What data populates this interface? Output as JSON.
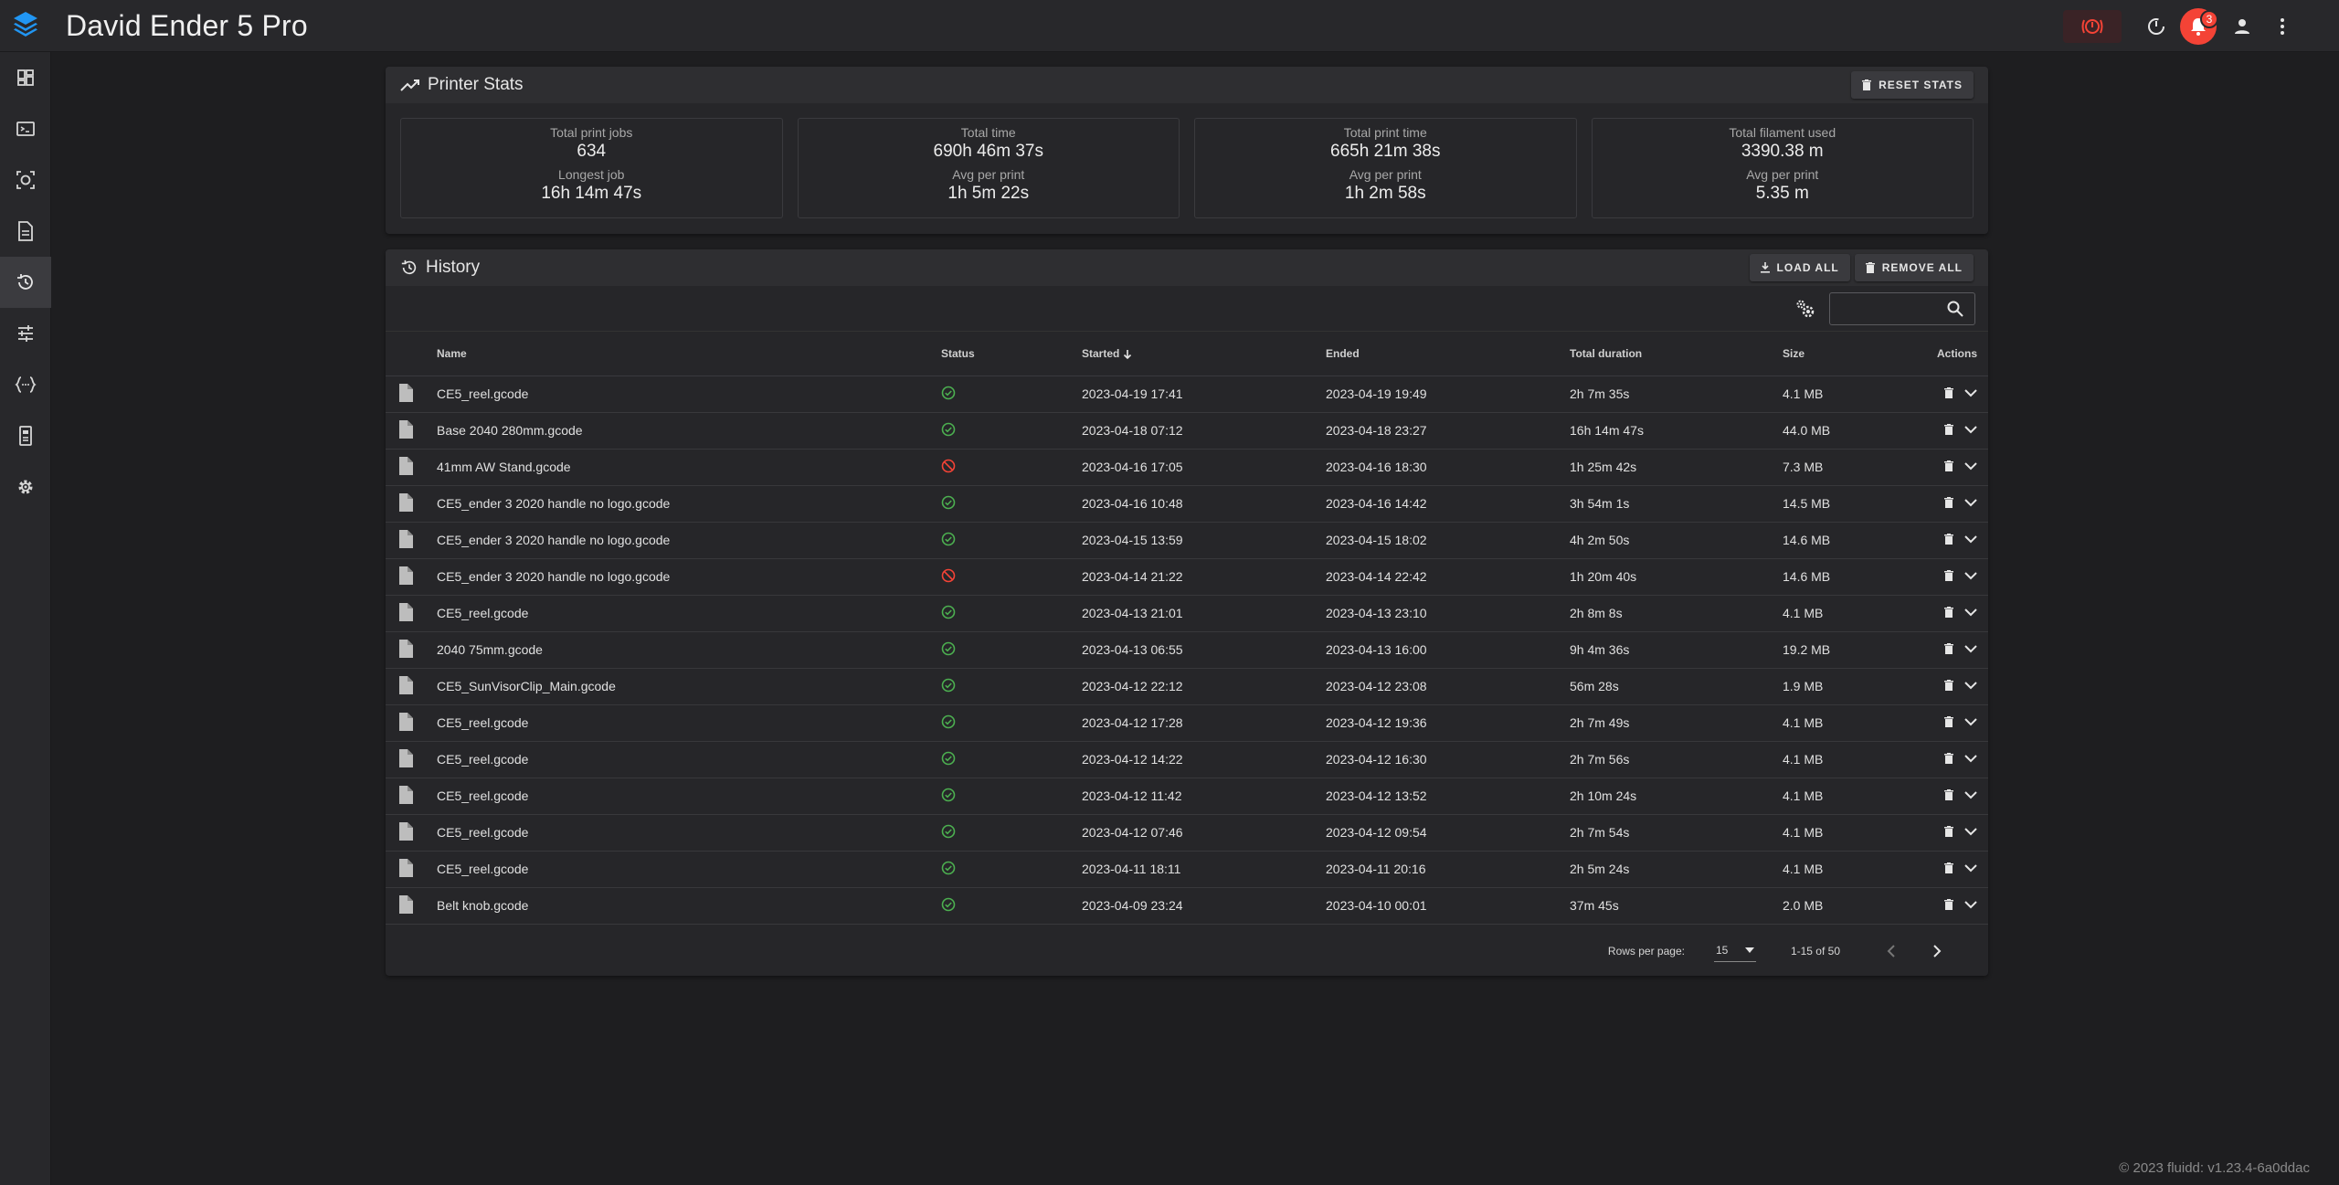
{
  "app": {
    "title": "David Ender 5 Pro",
    "notification_count": "3",
    "accent": "#2196f3",
    "danger": "#f44336"
  },
  "sidebar": {
    "items": [
      {
        "icon": "dashboard-icon"
      },
      {
        "icon": "console-icon"
      },
      {
        "icon": "camera-icon"
      },
      {
        "icon": "jobs-icon"
      },
      {
        "icon": "history-icon",
        "active": true
      },
      {
        "icon": "tune-icon"
      },
      {
        "icon": "macros-icon"
      },
      {
        "icon": "system-icon"
      },
      {
        "icon": "settings-icon"
      }
    ]
  },
  "stats": {
    "title": "Printer Stats",
    "reset_label": "RESET STATS",
    "boxes": [
      {
        "label1": "Total print jobs",
        "value1": "634",
        "label2": "Longest job",
        "value2": "16h 14m 47s"
      },
      {
        "label1": "Total time",
        "value1": "690h 46m 37s",
        "label2": "Avg per print",
        "value2": "1h 5m 22s"
      },
      {
        "label1": "Total print time",
        "value1": "665h 21m 38s",
        "label2": "Avg per print",
        "value2": "1h 2m 58s"
      },
      {
        "label1": "Total filament used",
        "value1": "3390.38 m",
        "label2": "Avg per print",
        "value2": "5.35 m"
      }
    ]
  },
  "history": {
    "title": "History",
    "load_all_label": "LOAD ALL",
    "remove_all_label": "REMOVE ALL",
    "search_value": "",
    "columns": {
      "name": "Name",
      "status": "Status",
      "started": "Started",
      "ended": "Ended",
      "duration": "Total duration",
      "size": "Size",
      "actions": "Actions"
    },
    "rows": [
      {
        "name": "CE5_reel.gcode",
        "status": "completed",
        "started": "2023-04-19 17:41",
        "ended": "2023-04-19 19:49",
        "duration": "2h 7m 35s",
        "size": "4.1 MB"
      },
      {
        "name": "Base 2040 280mm.gcode",
        "status": "completed",
        "started": "2023-04-18 07:12",
        "ended": "2023-04-18 23:27",
        "duration": "16h 14m 47s",
        "size": "44.0 MB"
      },
      {
        "name": "41mm AW Stand.gcode",
        "status": "cancelled",
        "started": "2023-04-16 17:05",
        "ended": "2023-04-16 18:30",
        "duration": "1h 25m 42s",
        "size": "7.3 MB"
      },
      {
        "name": "CE5_ender 3 2020 handle no logo.gcode",
        "status": "completed",
        "started": "2023-04-16 10:48",
        "ended": "2023-04-16 14:42",
        "duration": "3h 54m 1s",
        "size": "14.5 MB"
      },
      {
        "name": "CE5_ender 3 2020 handle no logo.gcode",
        "status": "completed",
        "started": "2023-04-15 13:59",
        "ended": "2023-04-15 18:02",
        "duration": "4h 2m 50s",
        "size": "14.6 MB"
      },
      {
        "name": "CE5_ender 3 2020 handle no logo.gcode",
        "status": "cancelled",
        "started": "2023-04-14 21:22",
        "ended": "2023-04-14 22:42",
        "duration": "1h 20m 40s",
        "size": "14.6 MB"
      },
      {
        "name": "CE5_reel.gcode",
        "status": "completed",
        "started": "2023-04-13 21:01",
        "ended": "2023-04-13 23:10",
        "duration": "2h 8m 8s",
        "size": "4.1 MB"
      },
      {
        "name": "2040 75mm.gcode",
        "status": "completed",
        "started": "2023-04-13 06:55",
        "ended": "2023-04-13 16:00",
        "duration": "9h 4m 36s",
        "size": "19.2 MB"
      },
      {
        "name": "CE5_SunVisorClip_Main.gcode",
        "status": "completed",
        "started": "2023-04-12 22:12",
        "ended": "2023-04-12 23:08",
        "duration": "56m 28s",
        "size": "1.9 MB"
      },
      {
        "name": "CE5_reel.gcode",
        "status": "completed",
        "started": "2023-04-12 17:28",
        "ended": "2023-04-12 19:36",
        "duration": "2h 7m 49s",
        "size": "4.1 MB"
      },
      {
        "name": "CE5_reel.gcode",
        "status": "completed",
        "started": "2023-04-12 14:22",
        "ended": "2023-04-12 16:30",
        "duration": "2h 7m 56s",
        "size": "4.1 MB"
      },
      {
        "name": "CE5_reel.gcode",
        "status": "completed",
        "started": "2023-04-12 11:42",
        "ended": "2023-04-12 13:52",
        "duration": "2h 10m 24s",
        "size": "4.1 MB"
      },
      {
        "name": "CE5_reel.gcode",
        "status": "completed",
        "started": "2023-04-12 07:46",
        "ended": "2023-04-12 09:54",
        "duration": "2h 7m 54s",
        "size": "4.1 MB"
      },
      {
        "name": "CE5_reel.gcode",
        "status": "completed",
        "started": "2023-04-11 18:11",
        "ended": "2023-04-11 20:16",
        "duration": "2h 5m 24s",
        "size": "4.1 MB"
      },
      {
        "name": "Belt knob.gcode",
        "status": "completed",
        "started": "2023-04-09 23:24",
        "ended": "2023-04-10 00:01",
        "duration": "37m 45s",
        "size": "2.0 MB"
      }
    ],
    "footer": {
      "rows_per_page_label": "Rows per page:",
      "rows_per_page": "15",
      "range": "1-15 of 50"
    }
  },
  "copyright": "© 2023 fluidd: v1.23.4-6a0ddac"
}
